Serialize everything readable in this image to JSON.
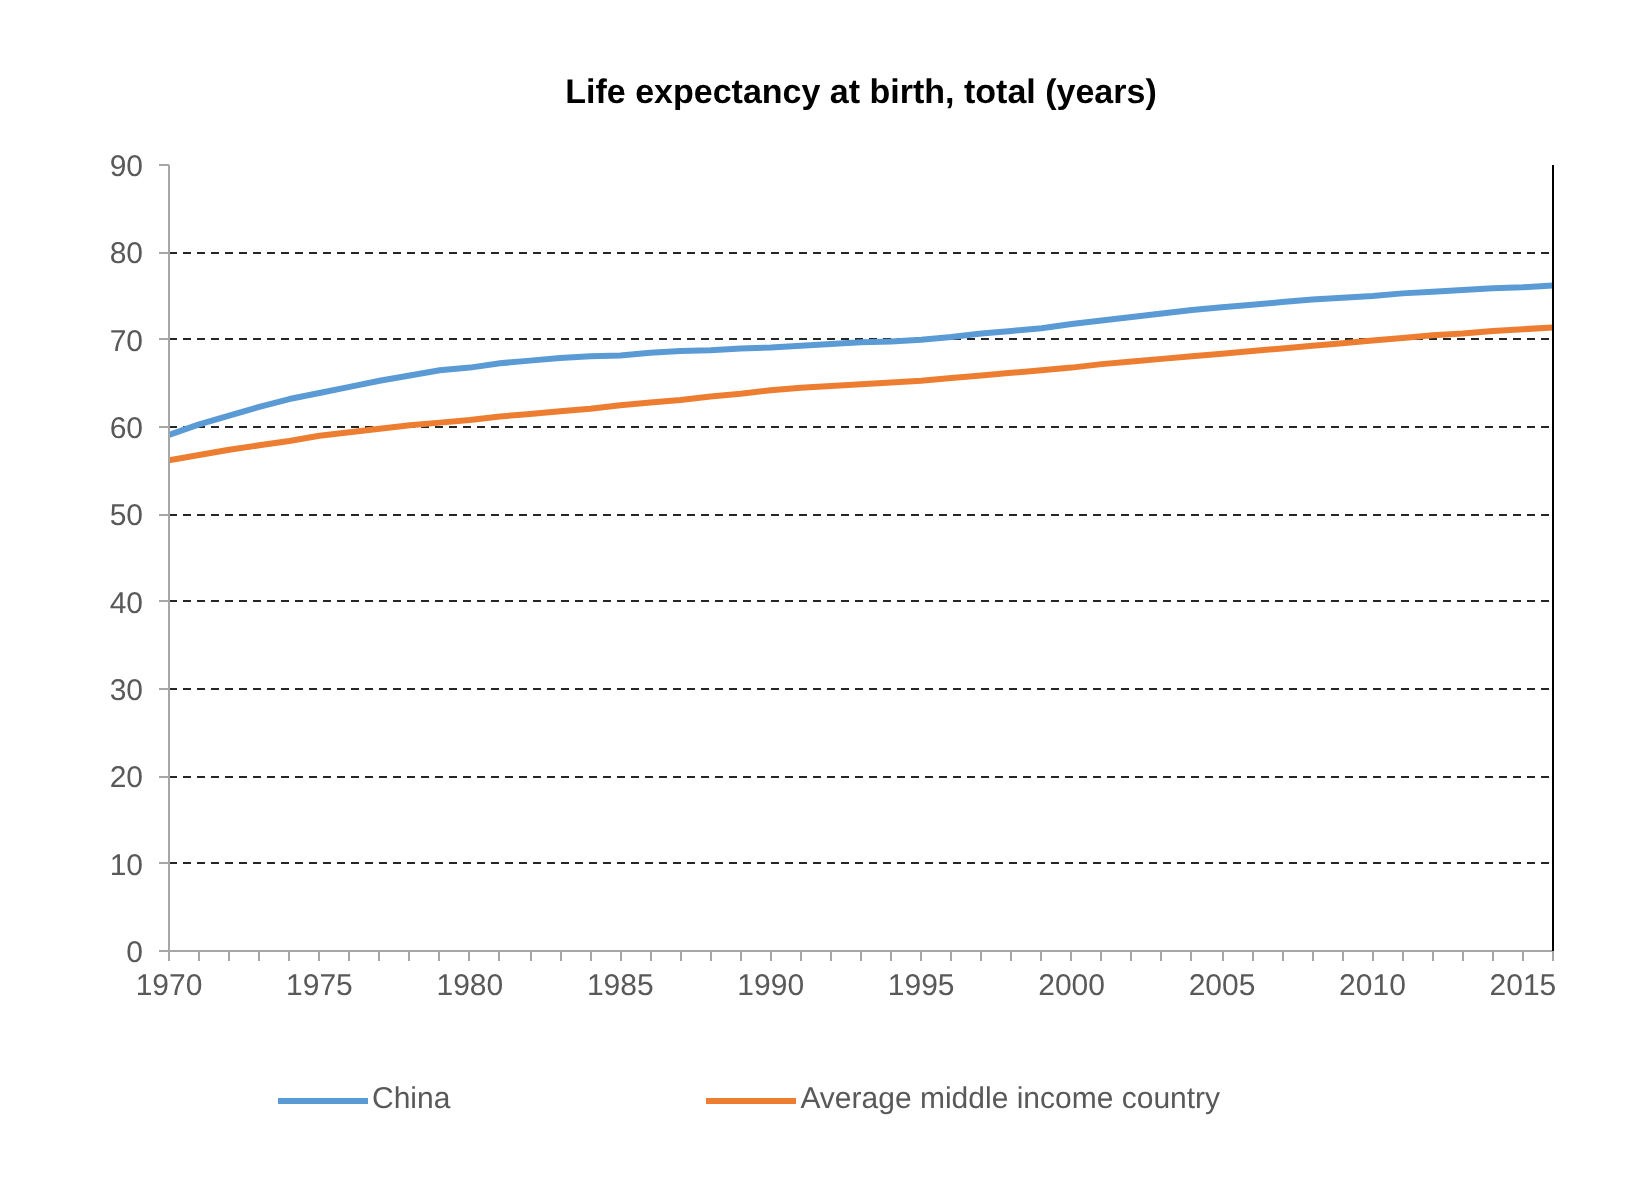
{
  "chart_data": {
    "type": "line",
    "title": "Life expectancy at birth, total (years)",
    "x": [
      1970,
      1971,
      1972,
      1973,
      1974,
      1975,
      1976,
      1977,
      1978,
      1979,
      1980,
      1981,
      1982,
      1983,
      1984,
      1985,
      1986,
      1987,
      1988,
      1989,
      1990,
      1991,
      1992,
      1993,
      1994,
      1995,
      1996,
      1997,
      1998,
      1999,
      2000,
      2001,
      2002,
      2003,
      2004,
      2005,
      2006,
      2007,
      2008,
      2009,
      2010,
      2011,
      2012,
      2013,
      2014,
      2015,
      2016
    ],
    "series": [
      {
        "name": "China",
        "color": "#5b9bd5",
        "values": [
          59.1,
          60.3,
          61.3,
          62.3,
          63.2,
          63.9,
          64.6,
          65.3,
          65.9,
          66.5,
          66.8,
          67.3,
          67.6,
          67.9,
          68.1,
          68.2,
          68.5,
          68.7,
          68.8,
          69.0,
          69.1,
          69.3,
          69.5,
          69.7,
          69.8,
          70.0,
          70.3,
          70.7,
          71.0,
          71.3,
          71.8,
          72.2,
          72.6,
          73.0,
          73.4,
          73.7,
          74.0,
          74.3,
          74.6,
          74.8,
          75.0,
          75.3,
          75.5,
          75.7,
          75.9,
          76.0,
          76.2
        ]
      },
      {
        "name": "Average middle income country",
        "color": "#ed7d31",
        "values": [
          56.2,
          56.8,
          57.4,
          57.9,
          58.4,
          59.0,
          59.4,
          59.8,
          60.2,
          60.5,
          60.8,
          61.2,
          61.5,
          61.8,
          62.1,
          62.5,
          62.8,
          63.1,
          63.5,
          63.8,
          64.2,
          64.5,
          64.7,
          64.9,
          65.1,
          65.3,
          65.6,
          65.9,
          66.2,
          66.5,
          66.8,
          67.2,
          67.5,
          67.8,
          68.1,
          68.4,
          68.7,
          69.0,
          69.3,
          69.6,
          69.9,
          70.2,
          70.5,
          70.7,
          71.0,
          71.2,
          71.4
        ]
      }
    ],
    "xlim": [
      1970,
      2016
    ],
    "xticks": [
      1970,
      {
        "value": 1971,
        "label": null
      },
      {
        "value": 1972,
        "label": null
      },
      {
        "value": 1973,
        "label": null
      },
      {
        "value": 1974,
        "label": null
      },
      1975,
      {
        "value": 1976,
        "label": null
      },
      {
        "value": 1977,
        "label": null
      },
      {
        "value": 1978,
        "label": null
      },
      {
        "value": 1979,
        "label": null
      },
      1980,
      {
        "value": 1981,
        "label": null
      },
      {
        "value": 1982,
        "label": null
      },
      {
        "value": 1983,
        "label": null
      },
      {
        "value": 1984,
        "label": null
      },
      1985,
      {
        "value": 1986,
        "label": null
      },
      {
        "value": 1987,
        "label": null
      },
      {
        "value": 1988,
        "label": null
      },
      {
        "value": 1989,
        "label": null
      },
      1990,
      {
        "value": 1991,
        "label": null
      },
      {
        "value": 1992,
        "label": null
      },
      {
        "value": 1993,
        "label": null
      },
      {
        "value": 1994,
        "label": null
      },
      1995,
      {
        "value": 1996,
        "label": null
      },
      {
        "value": 1997,
        "label": null
      },
      {
        "value": 1998,
        "label": null
      },
      {
        "value": 1999,
        "label": null
      },
      2000,
      {
        "value": 2001,
        "label": null
      },
      {
        "value": 2002,
        "label": null
      },
      {
        "value": 2003,
        "label": null
      },
      {
        "value": 2004,
        "label": null
      },
      2005,
      {
        "value": 2006,
        "label": null
      },
      {
        "value": 2007,
        "label": null
      },
      {
        "value": 2008,
        "label": null
      },
      {
        "value": 2009,
        "label": null
      },
      2010,
      {
        "value": 2011,
        "label": null
      },
      {
        "value": 2012,
        "label": null
      },
      {
        "value": 2013,
        "label": null
      },
      {
        "value": 2014,
        "label": null
      },
      2015,
      {
        "value": 2016,
        "label": null
      }
    ],
    "ylim": [
      0,
      90
    ],
    "yticks": [
      0,
      10,
      20,
      30,
      40,
      50,
      60,
      70,
      80,
      90
    ],
    "grid": "y",
    "legend": "bottom",
    "line_style": "solid"
  }
}
